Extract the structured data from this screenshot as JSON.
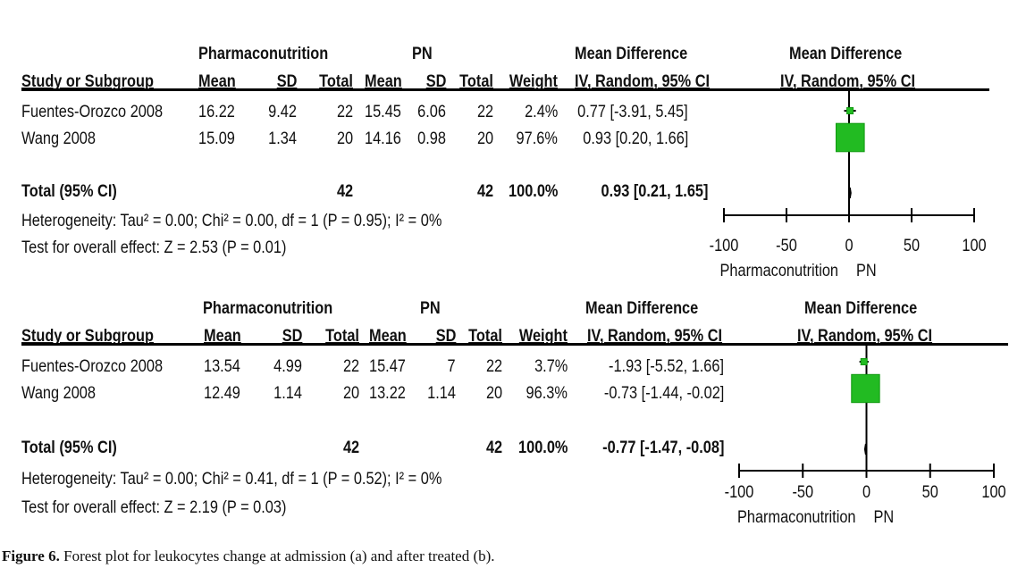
{
  "caption": {
    "label": "Figure 6.",
    "text": "Forest plot for leukocytes change at admission (a) and after treated (b)."
  },
  "chart_data": [
    {
      "type": "forest",
      "header": {
        "group1": "Pharmaconutrition",
        "group2": "PN",
        "md_title": "Mean Difference",
        "md_sub": "IV, Random, 95% CI",
        "plot_title": "Mean Difference",
        "plot_sub": "IV, Random, 95% CI",
        "col_study": "Study or Subgroup",
        "col_mean1": "Mean",
        "col_sd1": "SD",
        "col_total1": "Total",
        "col_mean2": "Mean",
        "col_sd2": "SD",
        "col_total2": "Total",
        "col_weight": "Weight"
      },
      "studies": [
        {
          "name": "Fuentes-Orozco 2008",
          "mean1": "16.22",
          "sd1": "9.42",
          "total1": "22",
          "mean2": "15.45",
          "sd2": "6.06",
          "total2": "22",
          "weight": "2.4%",
          "ci_text": "0.77 [-3.91, 5.45]",
          "md": 0.77,
          "lo": -3.91,
          "hi": 5.45,
          "w": 2.4
        },
        {
          "name": "Wang 2008",
          "mean1": "15.09",
          "sd1": "1.34",
          "total1": "20",
          "mean2": "14.16",
          "sd2": "0.98",
          "total2": "20",
          "weight": "97.6%",
          "ci_text": "0.93 [0.20, 1.66]",
          "md": 0.93,
          "lo": 0.2,
          "hi": 1.66,
          "w": 97.6
        }
      ],
      "total": {
        "label": "Total (95% CI)",
        "total1": "42",
        "total2": "42",
        "weight": "100.0%",
        "ci_text": "0.93 [0.21, 1.65]",
        "md": 0.93,
        "lo": 0.21,
        "hi": 1.65
      },
      "heterogeneity": "Heterogeneity: Tau² = 0.00; Chi² = 0.00, df = 1 (P = 0.95); I² = 0%",
      "overall_effect": "Test for overall effect: Z = 2.53 (P = 0.01)",
      "xlim": [
        -100,
        100
      ],
      "x_ticks": [
        -100,
        -50,
        0,
        50,
        100
      ],
      "x_tick_labels": [
        "-100",
        "-50",
        "0",
        "50",
        "100"
      ],
      "favours_left": "Pharmaconutrition",
      "favours_right": "PN",
      "colors": {
        "box": "#22bb22",
        "box_edge": "#119911",
        "line": "#000000"
      }
    },
    {
      "type": "forest",
      "header": {
        "group1": "Pharmaconutrition",
        "group2": "PN",
        "md_title": "Mean Difference",
        "md_sub": "IV, Random, 95% CI",
        "plot_title": "Mean Difference",
        "plot_sub": "IV, Random, 95% CI",
        "col_study": "Study or Subgroup",
        "col_mean1": "Mean",
        "col_sd1": "SD",
        "col_total1": "Total",
        "col_mean2": "Mean",
        "col_sd2": "SD",
        "col_total2": "Total",
        "col_weight": "Weight"
      },
      "studies": [
        {
          "name": "Fuentes-Orozco 2008",
          "mean1": "13.54",
          "sd1": "4.99",
          "total1": "22",
          "mean2": "15.47",
          "sd2": "7",
          "total2": "22",
          "weight": "3.7%",
          "ci_text": "-1.93 [-5.52, 1.66]",
          "md": -1.93,
          "lo": -5.52,
          "hi": 1.66,
          "w": 3.7
        },
        {
          "name": "Wang 2008",
          "mean1": "12.49",
          "sd1": "1.14",
          "total1": "20",
          "mean2": "13.22",
          "sd2": "1.14",
          "total2": "20",
          "weight": "96.3%",
          "ci_text": "-0.73 [-1.44, -0.02]",
          "md": -0.73,
          "lo": -1.44,
          "hi": -0.02,
          "w": 96.3
        }
      ],
      "total": {
        "label": "Total (95% CI)",
        "total1": "42",
        "total2": "42",
        "weight": "100.0%",
        "ci_text": "-0.77 [-1.47, -0.08]",
        "md": -0.77,
        "lo": -1.47,
        "hi": -0.08
      },
      "heterogeneity": "Heterogeneity: Tau² = 0.00; Chi² = 0.41, df = 1 (P = 0.52); I² = 0%",
      "overall_effect": "Test for overall effect: Z = 2.19 (P = 0.03)",
      "xlim": [
        -100,
        100
      ],
      "x_ticks": [
        -100,
        -50,
        0,
        50,
        100
      ],
      "x_tick_labels": [
        "-100",
        "-50",
        "0",
        "50",
        "100"
      ],
      "favours_left": "Pharmaconutrition",
      "favours_right": "PN",
      "colors": {
        "box": "#22bb22",
        "box_edge": "#119911",
        "line": "#000000"
      }
    }
  ]
}
